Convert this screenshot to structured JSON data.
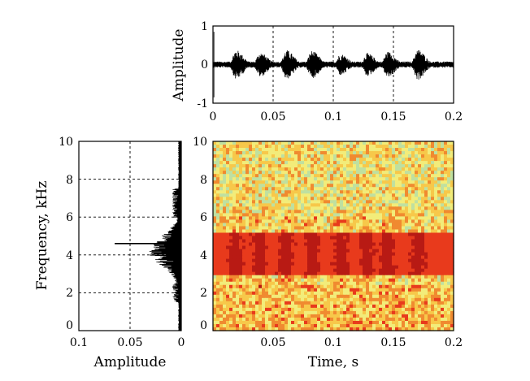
{
  "chart_data": [
    {
      "type": "line",
      "panel": "waveform",
      "xlabel": "",
      "ylabel": "Amplitude",
      "xlim": [
        0,
        0.2
      ],
      "ylim": [
        -1,
        1
      ],
      "xticks": [
        "0",
        "0.05",
        "0.1",
        "0.15",
        "0.2"
      ],
      "yticks": [
        "-1",
        "0",
        "1"
      ],
      "grid": true,
      "envelope": {
        "burst_times": [
          0.019,
          0.039,
          0.061,
          0.082,
          0.106,
          0.128,
          0.145,
          0.17
        ],
        "burst_peaks": [
          0.38,
          0.32,
          0.38,
          0.36,
          0.28,
          0.3,
          0.34,
          0.4
        ],
        "baseline": 0.08
      }
    },
    {
      "type": "line",
      "panel": "spectrum",
      "xlabel": "Amplitude",
      "ylabel": "Frequency, kHz",
      "xlim": [
        0.1,
        0
      ],
      "ylim": [
        0,
        10
      ],
      "xticks": [
        "0.1",
        "0.05",
        "0"
      ],
      "yticks": [
        "0",
        "2",
        "4",
        "6",
        "8",
        "10"
      ],
      "grid": true,
      "peak": {
        "frequency": 4.6,
        "amplitude": 0.065
      },
      "band": [
        2.5,
        6.0
      ]
    },
    {
      "type": "heatmap",
      "panel": "spectrogram",
      "xlabel": "Time, s",
      "ylabel": "",
      "xlim": [
        0,
        0.2
      ],
      "ylim": [
        0,
        10
      ],
      "xticks": [
        "0.05",
        "0.1",
        "0.15",
        "0.2"
      ],
      "yticks": [
        "0",
        "2",
        "4",
        "6",
        "8",
        "10"
      ],
      "colormap": [
        "#58c8d8",
        "#bfe0a0",
        "#f2ec7a",
        "#f7c84a",
        "#f08a30",
        "#e83a1c",
        "#b81a14"
      ],
      "band_kHz": [
        3.0,
        5.2
      ],
      "pulse_times": [
        0.019,
        0.039,
        0.061,
        0.082,
        0.106,
        0.128,
        0.145,
        0.17
      ]
    }
  ]
}
